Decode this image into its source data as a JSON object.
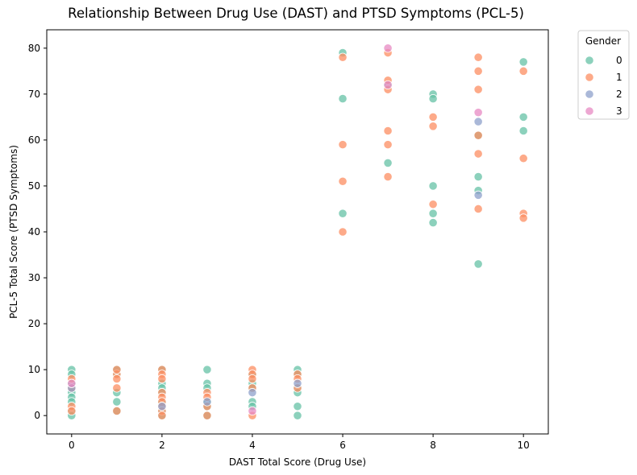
{
  "chart_data": {
    "type": "scatter",
    "title": "Relationship Between Drug Use (DAST) and PTSD Symptoms (PCL-5)",
    "xlabel": "DAST Total Score (Drug Use)",
    "ylabel": "PCL-5 Total Score (PTSD Symptoms)",
    "xlim": [
      -0.55,
      10.55
    ],
    "ylim": [
      -4,
      84
    ],
    "xticks": [
      0,
      2,
      4,
      6,
      8,
      10
    ],
    "yticks": [
      0,
      10,
      20,
      30,
      40,
      50,
      60,
      70,
      80
    ],
    "grid": false,
    "legend": {
      "title": "Gender",
      "placement": "outside-top-right",
      "entries": [
        "0",
        "1",
        "2",
        "3"
      ]
    },
    "series": [
      {
        "name": "0",
        "color": "#66c2a5",
        "points": [
          [
            0,
            10
          ],
          [
            0,
            9
          ],
          [
            0,
            7
          ],
          [
            0,
            5
          ],
          [
            0,
            4
          ],
          [
            0,
            3
          ],
          [
            0,
            1
          ],
          [
            0,
            0
          ],
          [
            1,
            10
          ],
          [
            1,
            9
          ],
          [
            1,
            5
          ],
          [
            1,
            3
          ],
          [
            1,
            1
          ],
          [
            2,
            10
          ],
          [
            2,
            7
          ],
          [
            2,
            6
          ],
          [
            2,
            5
          ],
          [
            2,
            3
          ],
          [
            2,
            1
          ],
          [
            2,
            0
          ],
          [
            3,
            10
          ],
          [
            3,
            7
          ],
          [
            3,
            6
          ],
          [
            3,
            3
          ],
          [
            3,
            2
          ],
          [
            3,
            0
          ],
          [
            4,
            9
          ],
          [
            4,
            7
          ],
          [
            4,
            6
          ],
          [
            4,
            3
          ],
          [
            4,
            2
          ],
          [
            5,
            10
          ],
          [
            5,
            9
          ],
          [
            5,
            6
          ],
          [
            5,
            5
          ],
          [
            5,
            2
          ],
          [
            5,
            0
          ],
          [
            6,
            79
          ],
          [
            6,
            69
          ],
          [
            6,
            44
          ],
          [
            7,
            55
          ],
          [
            7,
            72
          ],
          [
            8,
            70
          ],
          [
            8,
            69
          ],
          [
            8,
            50
          ],
          [
            8,
            44
          ],
          [
            8,
            42
          ],
          [
            9,
            61
          ],
          [
            9,
            52
          ],
          [
            9,
            49
          ],
          [
            9,
            33
          ],
          [
            10,
            77
          ],
          [
            10,
            65
          ],
          [
            10,
            62
          ]
        ]
      },
      {
        "name": "1",
        "color": "#fc8d62",
        "points": [
          [
            0,
            8
          ],
          [
            0,
            6
          ],
          [
            0,
            2
          ],
          [
            0,
            1
          ],
          [
            1,
            9
          ],
          [
            1,
            8
          ],
          [
            1,
            6
          ],
          [
            1,
            10
          ],
          [
            1,
            1
          ],
          [
            2,
            10
          ],
          [
            2,
            9
          ],
          [
            2,
            8
          ],
          [
            2,
            5
          ],
          [
            2,
            4
          ],
          [
            2,
            3
          ],
          [
            2,
            2
          ],
          [
            2,
            1
          ],
          [
            2,
            0
          ],
          [
            3,
            5
          ],
          [
            3,
            4
          ],
          [
            3,
            2
          ],
          [
            3,
            0
          ],
          [
            4,
            10
          ],
          [
            4,
            9
          ],
          [
            4,
            8
          ],
          [
            4,
            6
          ],
          [
            4,
            0
          ],
          [
            5,
            9
          ],
          [
            5,
            8
          ],
          [
            5,
            6
          ],
          [
            6,
            78
          ],
          [
            6,
            59
          ],
          [
            6,
            51
          ],
          [
            6,
            40
          ],
          [
            7,
            79
          ],
          [
            7,
            73
          ],
          [
            7,
            71
          ],
          [
            7,
            62
          ],
          [
            7,
            59
          ],
          [
            7,
            52
          ],
          [
            8,
            65
          ],
          [
            8,
            63
          ],
          [
            8,
            46
          ],
          [
            9,
            78
          ],
          [
            9,
            75
          ],
          [
            9,
            71
          ],
          [
            9,
            61
          ],
          [
            9,
            57
          ],
          [
            9,
            45
          ],
          [
            10,
            75
          ],
          [
            10,
            56
          ],
          [
            10,
            44
          ],
          [
            10,
            43
          ]
        ]
      },
      {
        "name": "2",
        "color": "#8da0cb",
        "points": [
          [
            0,
            6
          ],
          [
            2,
            2
          ],
          [
            3,
            3
          ],
          [
            4,
            5
          ],
          [
            5,
            7
          ],
          [
            9,
            64
          ],
          [
            9,
            48
          ]
        ]
      },
      {
        "name": "3",
        "color": "#e78ac3",
        "points": [
          [
            0,
            7
          ],
          [
            4,
            1
          ],
          [
            7,
            80
          ],
          [
            7,
            72
          ],
          [
            9,
            66
          ]
        ]
      }
    ]
  }
}
